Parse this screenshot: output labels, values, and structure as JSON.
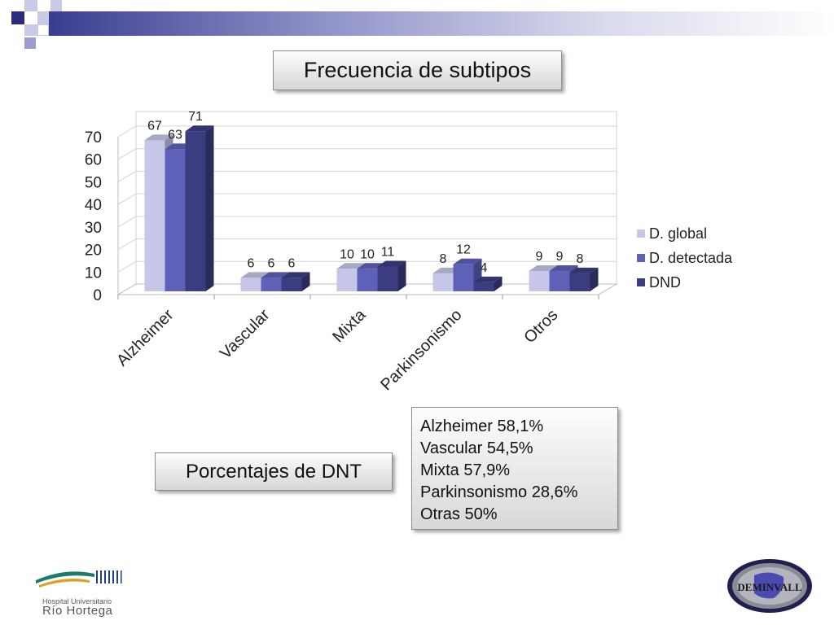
{
  "title": "Frecuencia de subtipos",
  "subtitle_box": "Porcentajes de DNT",
  "percentages": [
    "Alzheimer 58,1%",
    "Vascular 54,5%",
    "Mixta 57,9%",
    "Parkinsonismo 28,6%",
    "Otras 50%"
  ],
  "hospital": {
    "line1": "Hospital Universitario",
    "line2": "Río Hortega"
  },
  "logo_text": "DEMINVALL",
  "chart_data": {
    "type": "bar",
    "categories": [
      "Alzheimer",
      "Vascular",
      "Mixta",
      "Parkinsonismo",
      "Otros"
    ],
    "series": [
      {
        "name": "D. global",
        "values": [
          67,
          6,
          10,
          8,
          9
        ],
        "color": "#c5c6e8"
      },
      {
        "name": "D. detectada",
        "values": [
          63,
          6,
          10,
          12,
          9
        ],
        "color": "#5f60b8"
      },
      {
        "name": "DND",
        "values": [
          71,
          6,
          11,
          4,
          8
        ],
        "color": "#3c3d80"
      }
    ],
    "ylim": [
      0,
      70
    ],
    "yticks": [
      0,
      10,
      20,
      30,
      40,
      50,
      60,
      70
    ],
    "legend": "right",
    "grid": true,
    "style": "3d"
  }
}
